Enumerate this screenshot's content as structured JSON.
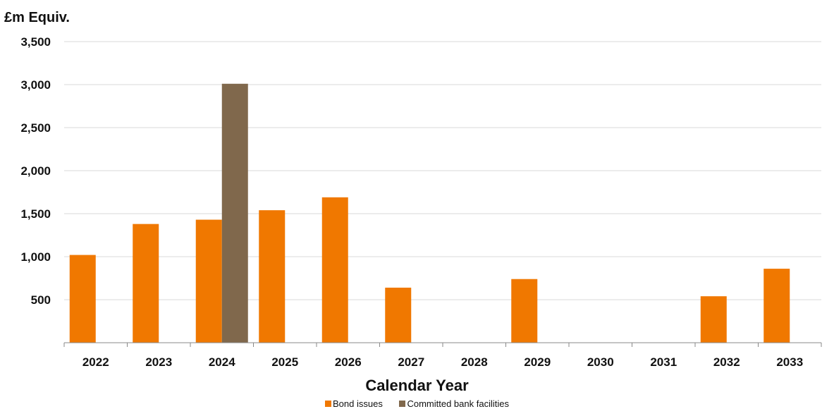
{
  "chart_data": {
    "type": "bar",
    "ylabel": "£m Equiv.",
    "xlabel": "Calendar Year",
    "categories": [
      "2022",
      "2023",
      "2024",
      "2025",
      "2026",
      "2027",
      "2028",
      "2029",
      "2030",
      "2031",
      "2032",
      "2033"
    ],
    "ylim": [
      0,
      3500
    ],
    "yticks": [
      500,
      1000,
      1500,
      2000,
      2500,
      3000,
      3500
    ],
    "ytick_labels": [
      "500",
      "1,000",
      "1,500",
      "2,000",
      "2,500",
      "3,000",
      "3,500"
    ],
    "grid": true,
    "legend_position": "bottom",
    "series": [
      {
        "name": "Bond issues",
        "color": "#F07800",
        "values": [
          1020,
          1380,
          1430,
          1540,
          1690,
          640,
          0,
          740,
          0,
          0,
          540,
          860
        ]
      },
      {
        "name": "Committed bank facilities",
        "color": "#80684C",
        "values": [
          0,
          0,
          3010,
          0,
          0,
          0,
          0,
          0,
          0,
          0,
          0,
          0
        ]
      }
    ]
  }
}
